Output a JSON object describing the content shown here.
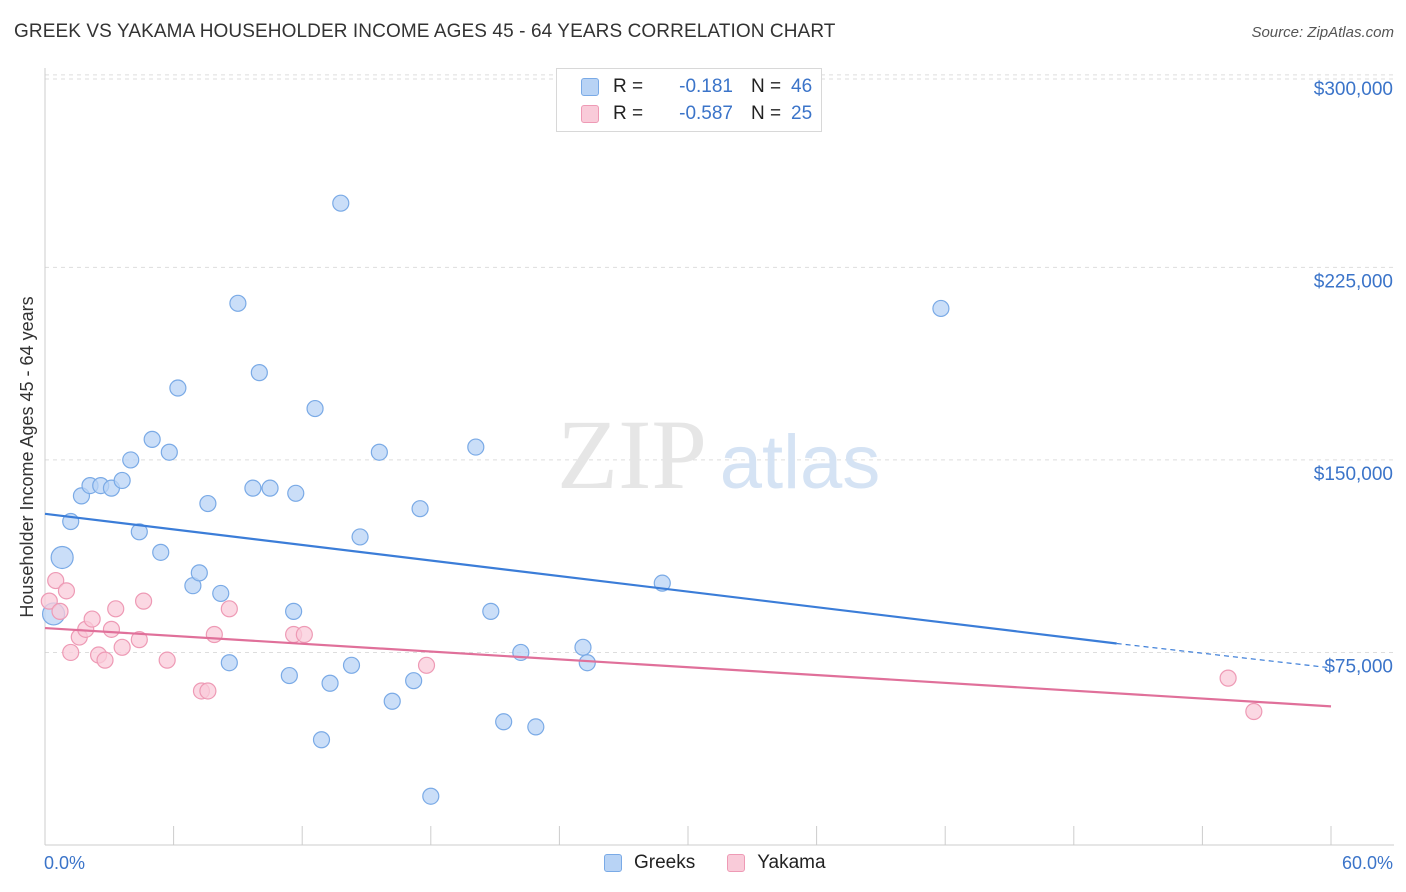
{
  "title": "GREEK VS YAKAMA HOUSEHOLDER INCOME AGES 45 - 64 YEARS CORRELATION CHART",
  "source": "Source: ZipAtlas.com",
  "watermark": {
    "zip": "ZIP",
    "atlas": "atlas"
  },
  "legend": {
    "rows": [
      {
        "r_label": "R =",
        "r_value": "-0.181",
        "n_label": "N =",
        "n_value": "46",
        "fill": "#b8d3f5",
        "stroke": "#7aaae6"
      },
      {
        "r_label": "R =",
        "r_value": "-0.587",
        "n_label": "N =",
        "n_value": "25",
        "fill": "#f9cbd9",
        "stroke": "#ee9ab5"
      }
    ]
  },
  "bottom_legend": [
    "Greeks",
    "Yakama"
  ],
  "chart_data": {
    "type": "scatter",
    "title": "GREEK VS YAKAMA HOUSEHOLDER INCOME AGES 45 - 64 YEARS CORRELATION CHART",
    "xlabel": "",
    "ylabel": "Householder Income Ages 45 - 64 years",
    "xlim": [
      0,
      60
    ],
    "ylim": [
      0,
      305000
    ],
    "x_tick_labels": [
      "0.0%",
      "60.0%"
    ],
    "y_ticks": [
      75000,
      150000,
      225000,
      300000
    ],
    "y_tick_labels": [
      "$75,000",
      "$150,000",
      "$225,000",
      "$300,000"
    ],
    "grid": true,
    "series": [
      {
        "name": "Greeks",
        "color": "#3b7dd8",
        "fill": "#b8d3f5",
        "stroke": "#7aaae6",
        "points": [
          [
            0.4,
            90000
          ],
          [
            0.8,
            112000
          ],
          [
            1.2,
            126000
          ],
          [
            1.7,
            136000
          ],
          [
            2.1,
            140000
          ],
          [
            2.6,
            140000
          ],
          [
            3.1,
            139000
          ],
          [
            3.6,
            142000
          ],
          [
            4.0,
            150000
          ],
          [
            4.4,
            122000
          ],
          [
            5.0,
            158000
          ],
          [
            5.4,
            114000
          ],
          [
            5.8,
            153000
          ],
          [
            6.2,
            178000
          ],
          [
            6.9,
            101000
          ],
          [
            7.2,
            106000
          ],
          [
            7.6,
            133000
          ],
          [
            8.2,
            98000
          ],
          [
            8.6,
            71000
          ],
          [
            9.0,
            211000
          ],
          [
            9.7,
            139000
          ],
          [
            10.0,
            184000
          ],
          [
            10.5,
            139000
          ],
          [
            11.4,
            66000
          ],
          [
            11.6,
            91000
          ],
          [
            11.7,
            137000
          ],
          [
            12.6,
            170000
          ],
          [
            12.9,
            41000
          ],
          [
            13.3,
            63000
          ],
          [
            13.8,
            250000
          ],
          [
            14.3,
            70000
          ],
          [
            14.7,
            120000
          ],
          [
            15.6,
            153000
          ],
          [
            16.2,
            56000
          ],
          [
            17.2,
            64000
          ],
          [
            17.5,
            131000
          ],
          [
            18.0,
            19000
          ],
          [
            20.1,
            155000
          ],
          [
            20.8,
            91000
          ],
          [
            21.4,
            48000
          ],
          [
            22.2,
            75000
          ],
          [
            22.9,
            46000
          ],
          [
            25.1,
            77000
          ],
          [
            25.3,
            71000
          ],
          [
            28.8,
            102000
          ],
          [
            41.8,
            209000
          ]
        ],
        "trend": {
          "x1": 0,
          "y1": 129000,
          "x2": 50,
          "y2": 78500,
          "dash_to_x": 60,
          "dash_to_y": 69000
        }
      },
      {
        "name": "Yakama",
        "color": "#e0709a",
        "fill": "#f9cbd9",
        "stroke": "#ee9ab5",
        "points": [
          [
            0.2,
            95000
          ],
          [
            0.5,
            103000
          ],
          [
            0.7,
            91000
          ],
          [
            1.0,
            99000
          ],
          [
            1.2,
            75000
          ],
          [
            1.6,
            81000
          ],
          [
            1.9,
            84000
          ],
          [
            2.2,
            88000
          ],
          [
            2.5,
            74000
          ],
          [
            2.8,
            72000
          ],
          [
            3.1,
            84000
          ],
          [
            3.3,
            92000
          ],
          [
            3.6,
            77000
          ],
          [
            4.4,
            80000
          ],
          [
            4.6,
            95000
          ],
          [
            5.7,
            72000
          ],
          [
            7.3,
            60000
          ],
          [
            7.6,
            60000
          ],
          [
            7.9,
            82000
          ],
          [
            8.6,
            92000
          ],
          [
            11.6,
            82000
          ],
          [
            12.1,
            82000
          ],
          [
            17.8,
            70000
          ],
          [
            55.2,
            65000
          ],
          [
            56.4,
            52000
          ]
        ],
        "trend": {
          "x1": 0,
          "y1": 84500,
          "x2": 60,
          "y2": 54000
        }
      }
    ]
  }
}
